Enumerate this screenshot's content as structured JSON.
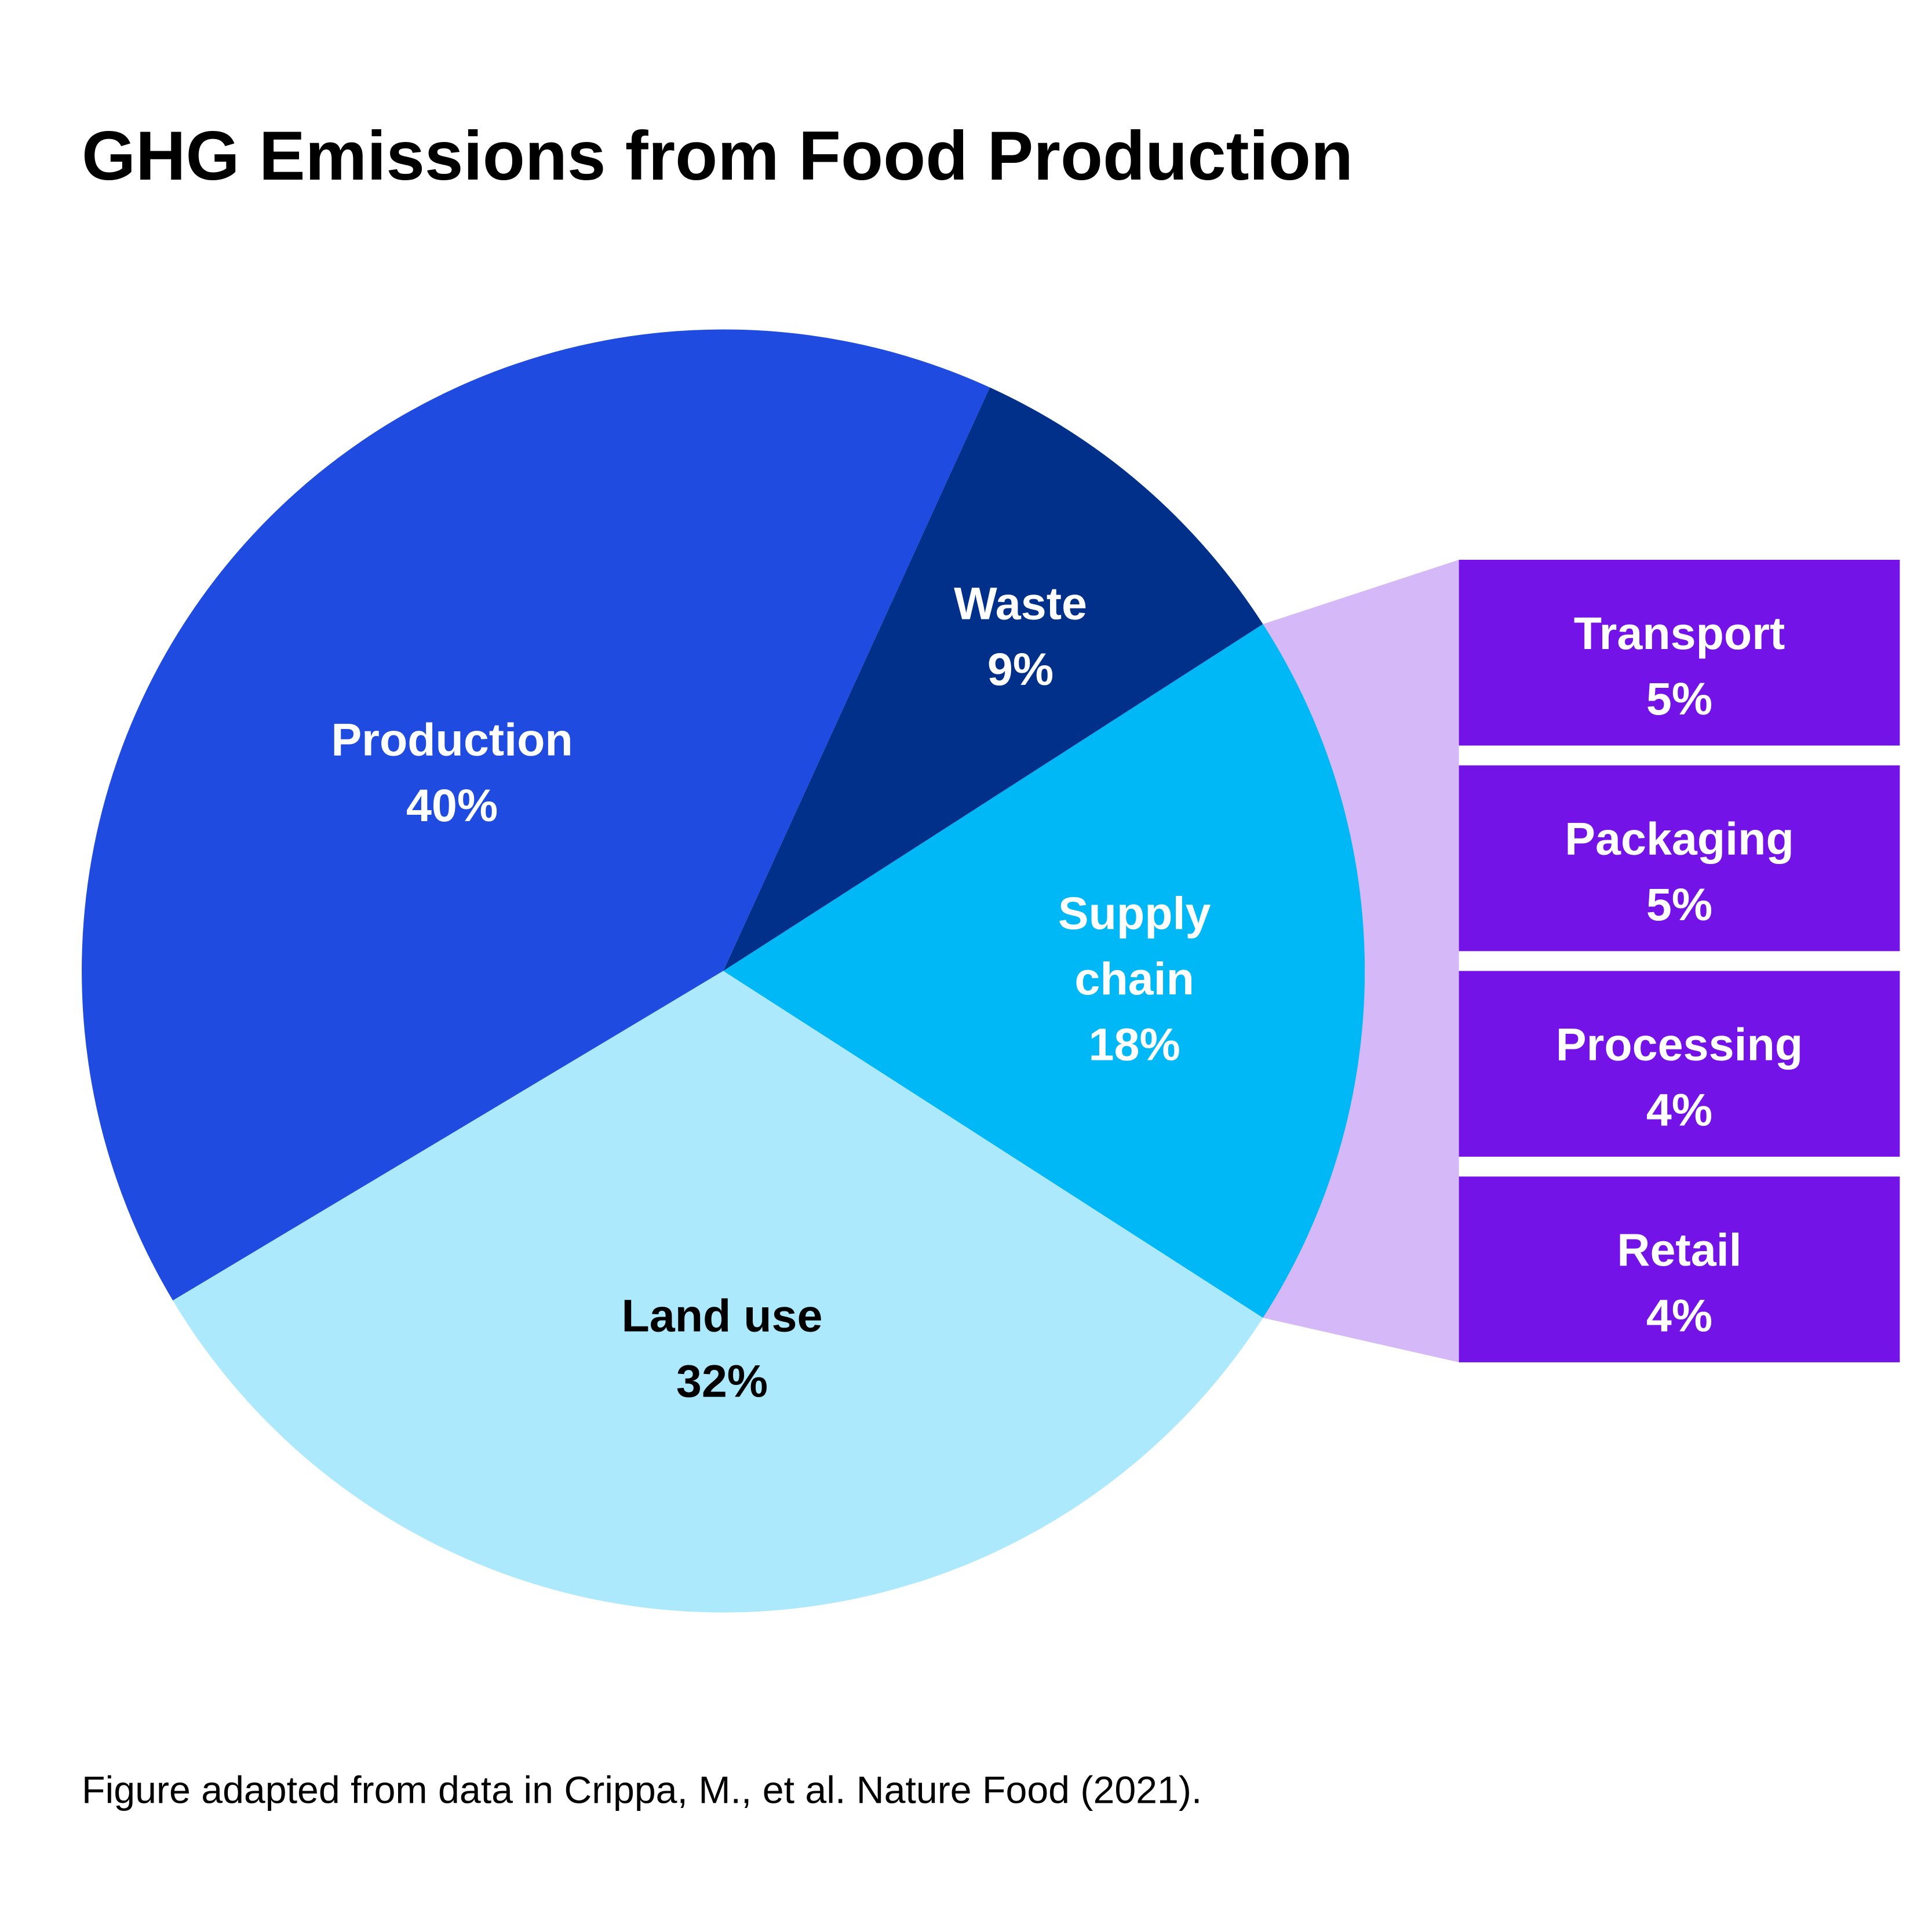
{
  "chart_data": {
    "type": "pie",
    "title": "GHG Emissions from Food Production",
    "slices": [
      {
        "label": "Supply chain",
        "label_lines": [
          "Supply",
          "chain"
        ],
        "value": 18,
        "value_text": "18%",
        "color": "#00b8f5",
        "text_color": "#ffffff"
      },
      {
        "label": "Waste",
        "label_lines": [
          "Waste"
        ],
        "value": 9,
        "value_text": "9%",
        "color": "#00308a",
        "text_color": "#ffffff"
      },
      {
        "label": "Production",
        "label_lines": [
          "Production"
        ],
        "value": 40,
        "value_text": "40%",
        "color": "#1f4be0",
        "text_color": "#ffffff"
      },
      {
        "label": "Land use",
        "label_lines": [
          "Land use"
        ],
        "value": 32,
        "value_text": "32%",
        "color": "#ade9fc",
        "text_color": "#000000"
      }
    ],
    "breakdown_of": "Supply chain",
    "breakdown": [
      {
        "label": "Transport",
        "value": 5,
        "value_text": "5%"
      },
      {
        "label": "Packaging",
        "value": 5,
        "value_text": "5%"
      },
      {
        "label": "Processing",
        "value": 4,
        "value_text": "4%"
      },
      {
        "label": "Retail",
        "value": 4,
        "value_text": "4%"
      }
    ],
    "breakdown_color": "#7413e8",
    "connector_color": "#d5b8f7",
    "footnote": "Figure adapted from data in Crippa, M., et al. Nature Food (2021)."
  }
}
